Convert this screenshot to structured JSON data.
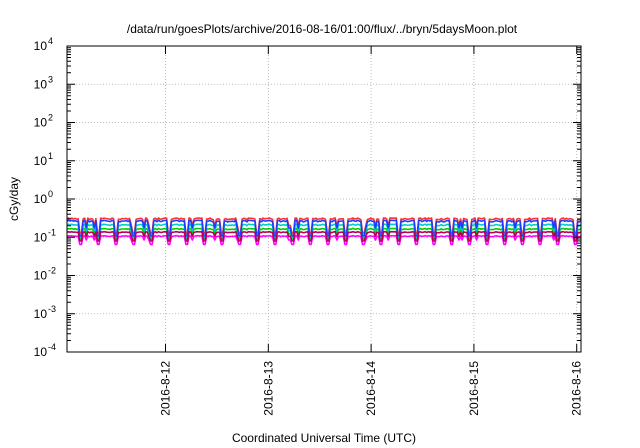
{
  "chart_data": {
    "type": "line",
    "title": "/data/run/goesPlots/archive/2016-08-16/01:00/flux/../bryn/5daysMoon.plot",
    "xlabel": "Coordinated Universal Time (UTC)",
    "ylabel": "cGy/day",
    "yscale": "log",
    "ylim": [
      0.0001,
      10000
    ],
    "y_ticks": [
      {
        "value": 0.0001,
        "base": "10",
        "exp": "-4"
      },
      {
        "value": 0.001,
        "base": "10",
        "exp": "-3"
      },
      {
        "value": 0.01,
        "base": "10",
        "exp": "-2"
      },
      {
        "value": 0.1,
        "base": "10",
        "exp": "-1"
      },
      {
        "value": 1,
        "base": "10",
        "exp": "0"
      },
      {
        "value": 10,
        "base": "10",
        "exp": "1"
      },
      {
        "value": 100,
        "base": "10",
        "exp": "2"
      },
      {
        "value": 1000,
        "base": "10",
        "exp": "3"
      },
      {
        "value": 10000,
        "base": "10",
        "exp": "4"
      }
    ],
    "xlim": [
      "2016-08-11 01:00",
      "2016-08-16 01:00"
    ],
    "x_ticks": [
      {
        "date": "2016-08-12 00:00",
        "label": "2016-8-12"
      },
      {
        "date": "2016-08-13 00:00",
        "label": "2016-8-13"
      },
      {
        "date": "2016-08-14 00:00",
        "label": "2016-8-14"
      },
      {
        "date": "2016-08-15 00:00",
        "label": "2016-8-15"
      },
      {
        "date": "2016-08-16 00:00",
        "label": "2016-8-16"
      }
    ],
    "grid": true,
    "series": [
      {
        "color": "#ff00ff",
        "typical": 0.11,
        "dip_low": 0.065
      },
      {
        "color": "#ff3030",
        "typical": 0.32,
        "dip_low": 0.13
      },
      {
        "color": "#00cc00",
        "typical": 0.17,
        "dip_low": 0.09
      },
      {
        "color": "#00cccc",
        "typical": 0.22,
        "dip_low": 0.1
      },
      {
        "color": "#1e3cff",
        "typical": 0.28,
        "dip_low": 0.11
      },
      {
        "color": "#b4005a",
        "typical": 0.14,
        "dip_low": 0.08
      }
    ]
  }
}
